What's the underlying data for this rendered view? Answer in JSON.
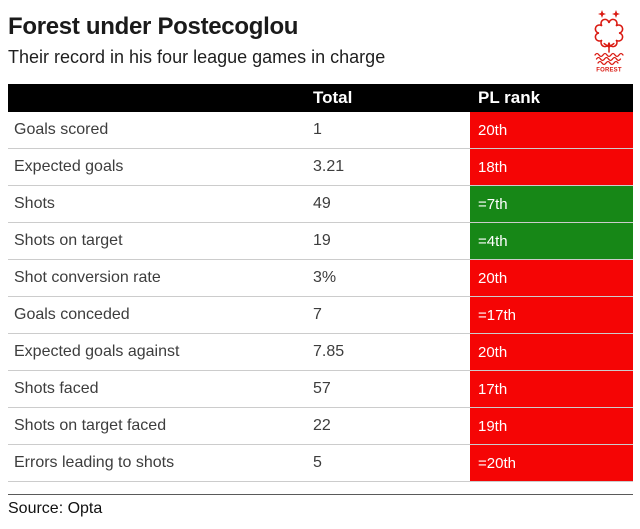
{
  "header": {
    "title": "Forest under Postecoglou",
    "subtitle": "Their record in his four league games in charge",
    "logo": {
      "icon": "nottingham-forest-crest",
      "label": "FOREST",
      "color": "#da1a12"
    }
  },
  "chart_data": {
    "type": "table",
    "title": "Forest under Postecoglou",
    "subtitle": "Their record in his four league games in charge",
    "columns": [
      "",
      "Total",
      "PL rank"
    ],
    "rows": [
      {
        "label": "Goals scored",
        "total": "1",
        "rank": "20th",
        "status": "bad"
      },
      {
        "label": "Expected goals",
        "total": "3.21",
        "rank": "18th",
        "status": "bad"
      },
      {
        "label": "Shots",
        "total": "49",
        "rank": "=7th",
        "status": "good"
      },
      {
        "label": "Shots on target",
        "total": "19",
        "rank": "=4th",
        "status": "good"
      },
      {
        "label": "Shot conversion rate",
        "total": "3%",
        "rank": "20th",
        "status": "bad"
      },
      {
        "label": "Goals conceded",
        "total": "7",
        "rank": "=17th",
        "status": "bad"
      },
      {
        "label": "Expected goals against",
        "total": "7.85",
        "rank": "20th",
        "status": "bad"
      },
      {
        "label": "Shots faced",
        "total": "57",
        "rank": "17th",
        "status": "bad"
      },
      {
        "label": "Shots on target faced",
        "total": "22",
        "rank": "19th",
        "status": "bad"
      },
      {
        "label": "Errors leading to shots",
        "total": "5",
        "rank": "=20th",
        "status": "bad"
      }
    ],
    "colors": {
      "rank_bad": "#f50505",
      "rank_good": "#178717",
      "header_bg": "#000000"
    },
    "legend_position": "none",
    "grid": false,
    "source": "Source: Opta"
  }
}
